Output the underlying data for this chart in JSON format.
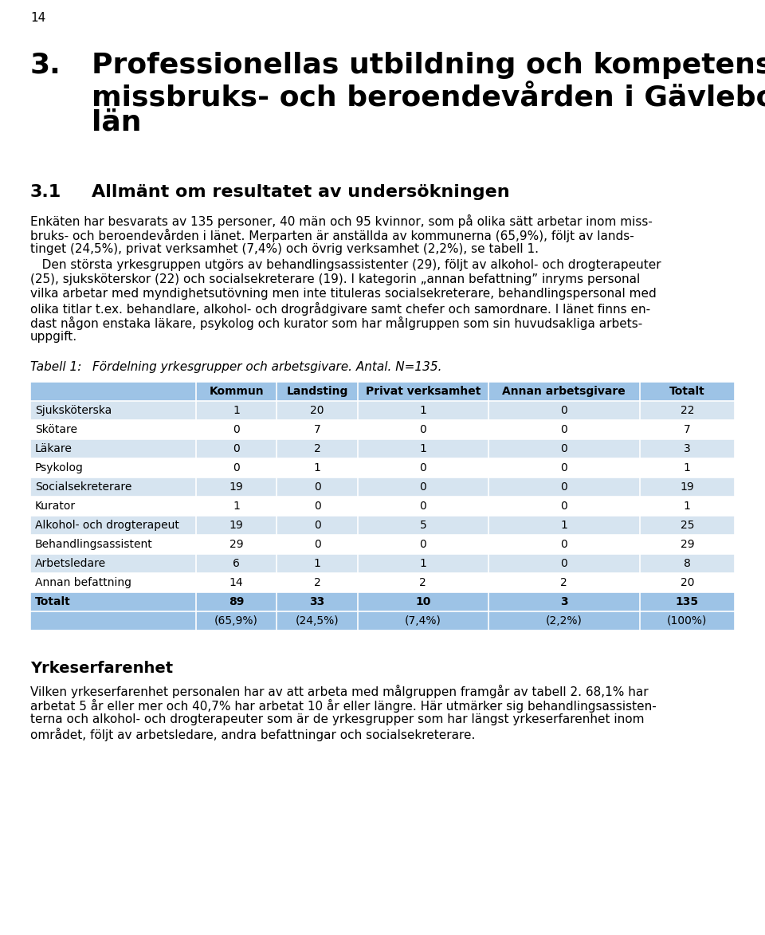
{
  "page_number": "14",
  "chapter_num": "3.",
  "chapter_text_line1": "Professionellas utbildning och kompetens inom",
  "chapter_text_line2": "missbruks- och beroendevården i Gävleborgs",
  "chapter_text_line3": "län",
  "section_num": "3.1",
  "section_text": "Allmänt om resultatet av undersökningen",
  "body_text_1_lines": [
    "Enkäten har besvarats av 135 personer, 40 män och 95 kvinnor, som på olika sätt arbetar inom miss-",
    "bruks- och beroendevården i länet. Merparten är anställda av kommunerna (65,9%), följt av lands-",
    "tinget (24,5%), privat verksamhet (7,4%) och övrig verksamhet (2,2%), se tabell 1."
  ],
  "body_text_2_lines": [
    "   Den största yrkesgruppen utgörs av behandlingsassistenter (29), följt av alkohol- och drogterapeuter",
    "(25), sjuksköterskor (22) och socialsekreterare (19). I kategorin „annan befattning” inryms personal",
    "vilka arbetar med myndighetsutövning men inte tituleras socialsekreterare, behandlingspersonal med",
    "olika titlar t.ex. behandlare, alkohol- och drogrådgivare samt chefer och samordnare. I länet finns en-",
    "dast någon enstaka läkare, psykolog och kurator som har målgruppen som sin huvudsakliga arbets-",
    "uppgift."
  ],
  "table_caption": "Tabell 1:",
  "table_caption2": "Fördelning yrkesgrupper och arbetsgivare. Antal. N=135.",
  "table_headers": [
    "",
    "Kommun",
    "Landsting",
    "Privat verksamhet",
    "Annan arbetsgivare",
    "Totalt"
  ],
  "table_rows": [
    [
      "Sjuksköterska",
      "1",
      "20",
      "1",
      "0",
      "22"
    ],
    [
      "Skötare",
      "0",
      "7",
      "0",
      "0",
      "7"
    ],
    [
      "Läkare",
      "0",
      "2",
      "1",
      "0",
      "3"
    ],
    [
      "Psykolog",
      "0",
      "1",
      "0",
      "0",
      "1"
    ],
    [
      "Socialsekreterare",
      "19",
      "0",
      "0",
      "0",
      "19"
    ],
    [
      "Kurator",
      "1",
      "0",
      "0",
      "0",
      "1"
    ],
    [
      "Alkohol- och drogterapeut",
      "19",
      "0",
      "5",
      "1",
      "25"
    ],
    [
      "Behandlingsassistent",
      "29",
      "0",
      "0",
      "0",
      "29"
    ],
    [
      "Arbetsledare",
      "6",
      "1",
      "1",
      "0",
      "8"
    ],
    [
      "Annan befattning",
      "14",
      "2",
      "2",
      "2",
      "20"
    ],
    [
      "Totalt",
      "89",
      "33",
      "10",
      "3",
      "135"
    ],
    [
      "",
      "(65,9%)",
      "(24,5%)",
      "(7,4%)",
      "(2,2%)",
      "(100%)"
    ]
  ],
  "section2_title": "Yrkeserfarenhet",
  "body_text_3_lines": [
    "Vilken yrkeserfarenhet personalen har av att arbeta med målgruppen framgår av tabell 2. 68,1% har",
    "arbetat 5 år eller mer och 40,7% har arbetat 10 år eller längre. Här utmärker sig behandlingsassisten-",
    "terna och alkohol- och drogterapeuter som är de yrkesgrupper som har längst yrkeserfarenhet inom",
    "området, följt av arbetsledare, andra befattningar och socialsekreterare."
  ],
  "bg_color": "#ffffff",
  "text_color": "#000000",
  "table_header_bg": "#9dc3e6",
  "table_odd_row_bg": "#d6e4f0",
  "table_even_row_bg": "#ffffff",
  "table_totalt_bg": "#9dc3e6",
  "table_pct_bg": "#9dc3e6"
}
